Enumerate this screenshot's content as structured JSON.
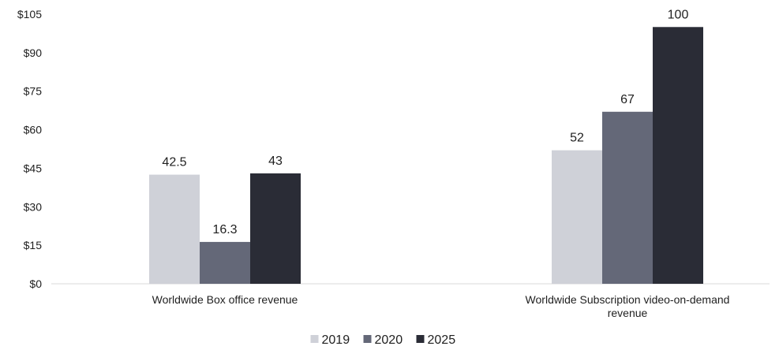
{
  "chart_data": {
    "type": "bar",
    "title": "",
    "xlabel": "",
    "ylabel": "",
    "ylim": [
      0,
      105
    ],
    "yticks": [
      0,
      15,
      30,
      45,
      60,
      75,
      90,
      105
    ],
    "ytick_labels": [
      "$0",
      "$15",
      "$30",
      "$45",
      "$60",
      "$75",
      "$90",
      "$105"
    ],
    "categories": [
      [
        "Worldwide Box office revenue"
      ],
      [
        "Worldwide Subscription video-on-demand",
        "revenue"
      ]
    ],
    "series": [
      {
        "name": "2019",
        "color": "#cfd1d8",
        "values": [
          42.5,
          52
        ],
        "labels": [
          "42.5",
          "52"
        ]
      },
      {
        "name": "2020",
        "color": "#646878",
        "values": [
          16.3,
          67
        ],
        "labels": [
          "16.3",
          "67"
        ]
      },
      {
        "name": "2025",
        "color": "#2a2c36",
        "values": [
          43,
          100
        ],
        "labels": [
          "43",
          "100"
        ]
      }
    ],
    "grid": false,
    "legend_position": "bottom-center"
  }
}
